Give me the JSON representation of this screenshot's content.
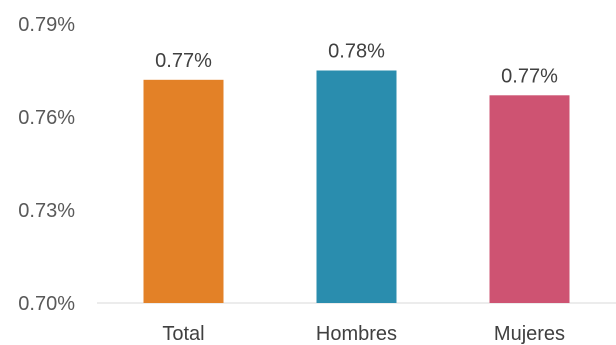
{
  "chart_data": {
    "type": "bar",
    "title": "",
    "xlabel": "",
    "ylabel": "",
    "categories": [
      "Total",
      "Hombres",
      "Mujeres"
    ],
    "values": [
      0.772,
      0.775,
      0.767
    ],
    "data_labels": [
      "0.77%",
      "0.78%",
      "0.77%"
    ],
    "colors": [
      "#E38127",
      "#2A8DAE",
      "#CE5372"
    ],
    "ylim": [
      0.7,
      0.79
    ],
    "y_ticks": [
      0.7,
      0.73,
      0.76,
      0.79
    ],
    "y_tick_labels": [
      "0.70%",
      "0.73%",
      "0.76%",
      "0.79%"
    ],
    "grid": false,
    "legend": "none"
  }
}
